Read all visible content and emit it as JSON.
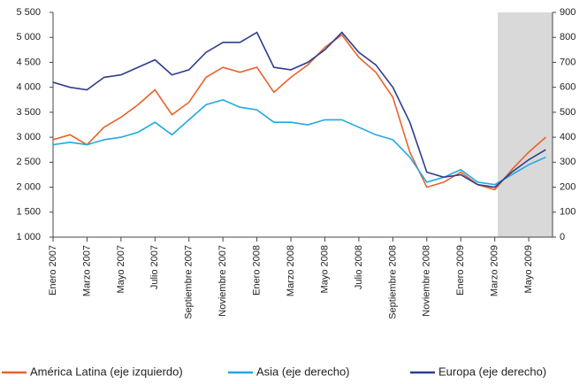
{
  "chart_data": {
    "type": "line",
    "categories": [
      "Enero 2007",
      null,
      "Marzo 2007",
      null,
      "Mayo 2007",
      null,
      "Julio 2007",
      null,
      "Septiembre 2007",
      null,
      "Noviembre 2007",
      null,
      "Enero 2008",
      null,
      "Marzo 2008",
      null,
      "Mayo 2008",
      null,
      "Julio 2008",
      null,
      "Septiembre 2008",
      null,
      "Noviembre 2008",
      null,
      "Enero 2009",
      null,
      "Marzo 2009",
      null,
      "Mayo 2009",
      null
    ],
    "series": [
      {
        "name": "América Latina (eje izquierdo)",
        "color": "#e8632b",
        "values": [
          2950,
          3050,
          2850,
          3200,
          3400,
          3650,
          3950,
          3450,
          3700,
          4200,
          4400,
          4300,
          4400,
          3900,
          4200,
          4450,
          4800,
          5050,
          4600,
          4300,
          3800,
          2700,
          2000,
          2100,
          2300,
          2050,
          1950,
          2350,
          2700,
          3000
        ]
      },
      {
        "name": "Asia (eje derecho)",
        "color": "#1eaadf",
        "axis": "y2",
        "values": [
          370,
          380,
          370,
          390,
          400,
          420,
          460,
          410,
          470,
          530,
          550,
          520,
          510,
          460,
          460,
          450,
          470,
          470,
          440,
          410,
          390,
          320,
          220,
          240,
          270,
          220,
          210,
          250,
          290,
          320
        ]
      },
      {
        "name": "Europa (eje derecho)",
        "color": "#2e3d8f",
        "axis": "y2",
        "values": [
          620,
          600,
          590,
          640,
          650,
          680,
          710,
          650,
          670,
          740,
          780,
          780,
          820,
          680,
          670,
          700,
          750,
          820,
          740,
          690,
          600,
          460,
          260,
          240,
          250,
          210,
          200,
          260,
          310,
          350
        ]
      }
    ],
    "ylim": [
      1000,
      5500
    ],
    "yticks": [
      {
        "value": 1000,
        "label": "1 000"
      },
      {
        "value": 1500,
        "label": "1 500"
      },
      {
        "value": 2000,
        "label": "2 000"
      },
      {
        "value": 2500,
        "label": "2 500"
      },
      {
        "value": 3000,
        "label": "3 000"
      },
      {
        "value": 3500,
        "label": "3 500"
      },
      {
        "value": 4000,
        "label": "4 000"
      },
      {
        "value": 4500,
        "label": "4 500"
      },
      {
        "value": 5000,
        "label": "5 000"
      },
      {
        "value": 5500,
        "label": "5 500"
      }
    ],
    "y2lim": [
      0,
      900
    ],
    "y2ticks": [
      0,
      100,
      200,
      300,
      400,
      500,
      600,
      700,
      800,
      900
    ]
  }
}
